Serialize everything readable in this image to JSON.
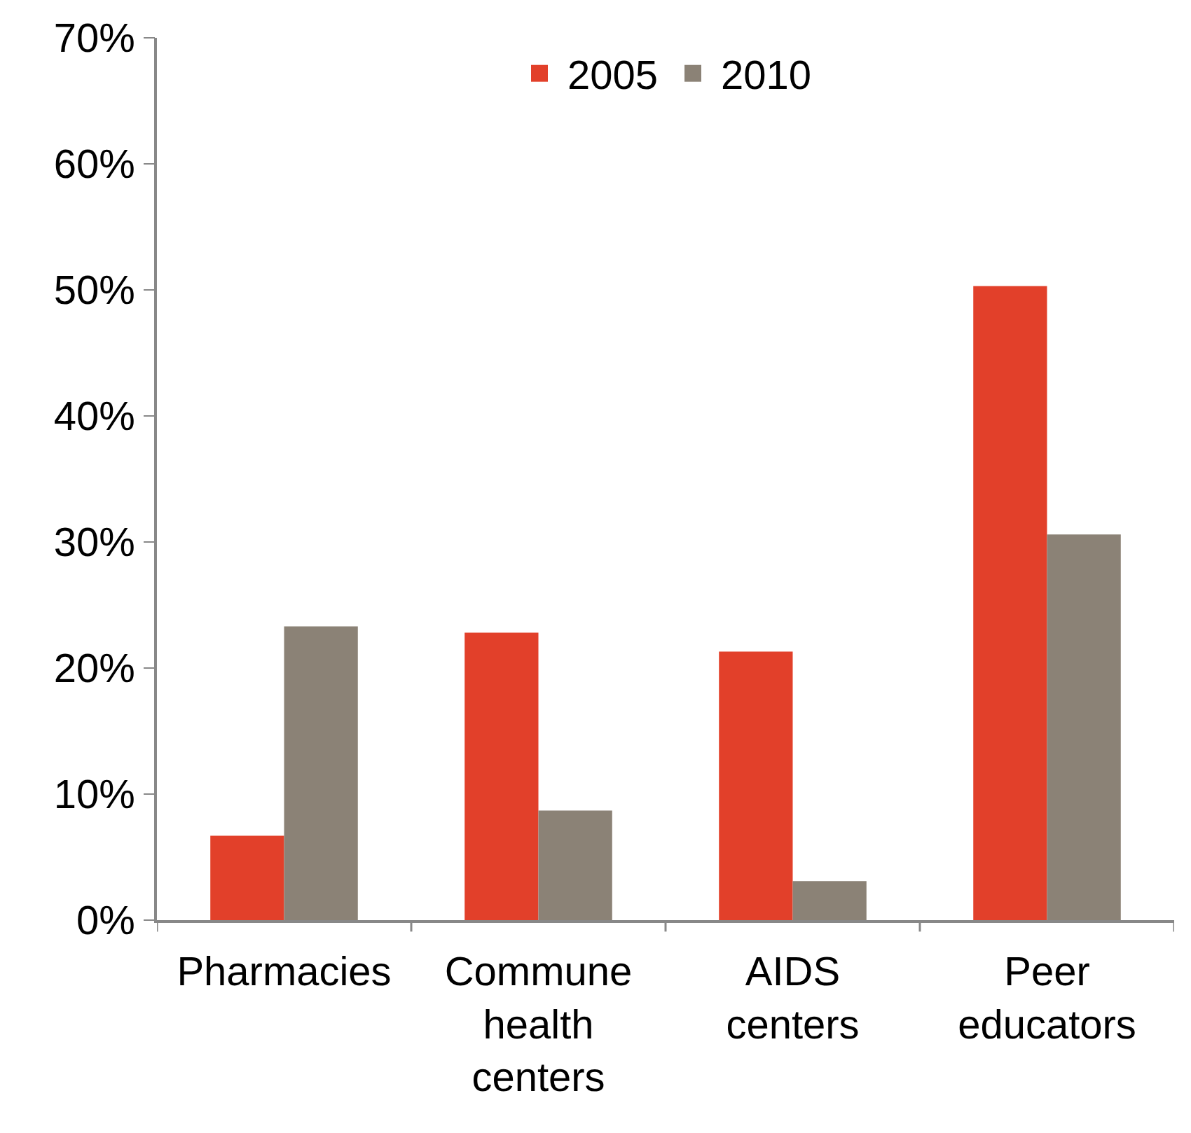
{
  "chart_data": {
    "type": "bar",
    "categories": [
      "Pharmacies",
      "Commune health centers",
      "AIDS centers",
      "Peer educators"
    ],
    "series": [
      {
        "name": "2005",
        "color": "#e2402a",
        "values": [
          6.7,
          22.8,
          21.3,
          50.3
        ]
      },
      {
        "name": "2010",
        "color": "#8b8276",
        "values": [
          23.3,
          8.7,
          3.1,
          30.6
        ]
      }
    ],
    "ylim": [
      0,
      70
    ],
    "yticks": [
      {
        "value": 0,
        "label": "0%"
      },
      {
        "value": 10,
        "label": "10%"
      },
      {
        "value": 20,
        "label": "20%"
      },
      {
        "value": 30,
        "label": "30%"
      },
      {
        "value": 40,
        "label": "40%"
      },
      {
        "value": 50,
        "label": "50%"
      },
      {
        "value": 60,
        "label": "60%"
      },
      {
        "value": 70,
        "label": "70%"
      }
    ],
    "grid": false,
    "legend": "top"
  }
}
